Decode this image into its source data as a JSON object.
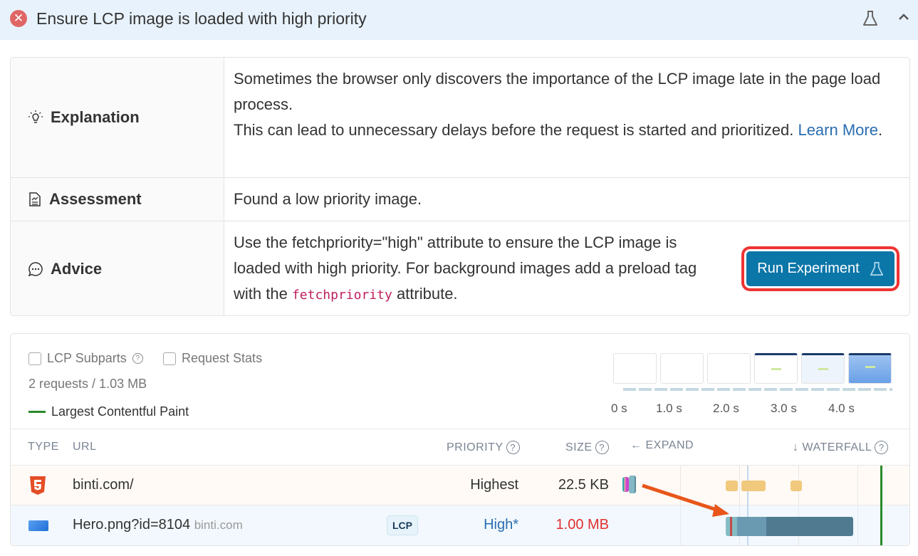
{
  "header": {
    "title": "Ensure LCP image is loaded with high priority",
    "status_icon": "error-x-icon"
  },
  "details": {
    "explanation": {
      "label": "Explanation",
      "text": "Sometimes the browser only discovers the importance of the LCP image late in the page load process.",
      "text2": "This can lead to unnecessary delays before the request is started and prioritized. ",
      "link": "Learn More",
      "after": "."
    },
    "assessment": {
      "label": "Assessment",
      "text": "Found a low priority image."
    },
    "advice": {
      "label": "Advice",
      "line1": "Use the fetchpriority=\"high\" attribute to ensure the LCP image is",
      "line2": "loaded with high priority. For background images add a preload tag",
      "line3_pre": "with the ",
      "line3_code": "fetchpriority",
      "line3_post": " attribute.",
      "button": "Run Experiment"
    }
  },
  "requests": {
    "checkboxes": [
      {
        "label": "LCP Subparts",
        "checked": false
      },
      {
        "label": "Request Stats",
        "checked": false
      }
    ],
    "summary": "2 requests / 1.03 MB",
    "legend": "Largest Contentful Paint",
    "ticks": [
      "0 s",
      "1.0 s",
      "2.0 s",
      "3.0 s",
      "4.0 s"
    ],
    "columns": {
      "type": "TYPE",
      "url": "URL",
      "priority": "PRIORITY",
      "size": "SIZE",
      "expand": "← EXPAND",
      "waterfall": "↓ WATERFALL"
    },
    "rows": [
      {
        "type": "html",
        "url": "binti.com/",
        "domain": "",
        "badge": "",
        "priority": "Highest",
        "size": "22.5 KB"
      },
      {
        "type": "image",
        "url": "Hero.png?id=8104",
        "domain": "binti.com",
        "badge": "LCP",
        "priority": "High*",
        "size": "1.00 MB"
      }
    ]
  },
  "colors": {
    "accent": "#0b76a8",
    "highlight": "#ef3333",
    "lcp_line": "#2a8a2a",
    "size_warning": "#e03030",
    "priority_link": "#2a6db0"
  }
}
